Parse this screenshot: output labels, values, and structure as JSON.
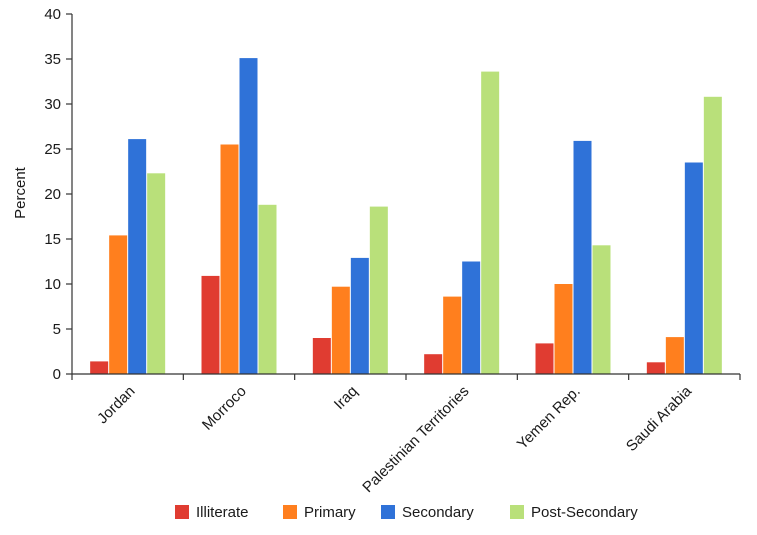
{
  "chart_data": {
    "type": "bar",
    "title": "",
    "xlabel": "",
    "ylabel": "Percent",
    "ylim": [
      0,
      40
    ],
    "yticks": [
      0,
      5,
      10,
      15,
      20,
      25,
      30,
      35,
      40
    ],
    "grid": false,
    "legend_position": "bottom",
    "categories": [
      "Jordan",
      "Morroco",
      "Iraq",
      "Palestinian Territories",
      "Yemen Rep.",
      "Saudi Arabia"
    ],
    "series": [
      {
        "name": "Illiterate",
        "color": "#e03c31",
        "values": [
          1.4,
          10.9,
          4.0,
          2.2,
          3.4,
          1.3
        ]
      },
      {
        "name": "Primary",
        "color": "#ff7f1e",
        "values": [
          15.4,
          25.5,
          9.7,
          8.6,
          10.0,
          4.1
        ]
      },
      {
        "name": "Secondary",
        "color": "#2f72d8",
        "values": [
          26.1,
          35.1,
          12.9,
          12.5,
          25.9,
          23.5
        ]
      },
      {
        "name": "Post-Secondary",
        "color": "#b9e07a",
        "values": [
          22.3,
          18.8,
          18.6,
          33.6,
          14.3,
          30.8
        ]
      }
    ]
  }
}
